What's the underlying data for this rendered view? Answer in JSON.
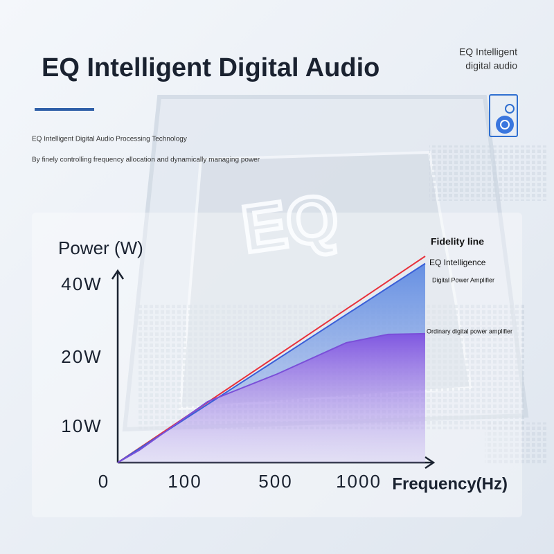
{
  "chart_data": {
    "type": "line",
    "title": "EQ Intelligent Digital Audio",
    "badge": [
      "EQ Intelligent",
      "digital audio"
    ],
    "subtitle": [
      "EQ Intelligent Digital Audio Processing Technology",
      "By finely controlling frequency allocation and dynamically managing power"
    ],
    "watermark": "EQ",
    "y_label": "Power (W)",
    "x_label": "Frequency(Hz)",
    "xlim": [
      0,
      1450
    ],
    "ylim": [
      0,
      44
    ],
    "xticks": [
      0,
      100,
      500,
      1000
    ],
    "yticks": [
      {
        "value": 10,
        "label": "10W"
      },
      {
        "value": 20,
        "label": "20W"
      },
      {
        "value": 40,
        "label": "40W"
      }
    ],
    "series": [
      {
        "name": "Fidelity line",
        "color": "#e8303a",
        "x": [
          0,
          1400
        ],
        "values": [
          0,
          48
        ]
      },
      {
        "name": "EQ Intelligence",
        "name_sub": "Digital Power Amplifier",
        "color": "#3a5fd8",
        "x": [
          0,
          1400
        ],
        "values": [
          0,
          46
        ]
      },
      {
        "name": "Ordinary digital power amplifier",
        "color": "#7a4fd8",
        "x": [
          0,
          32,
          200,
          510,
          925,
          1175,
          1400
        ],
        "values": [
          0,
          3.5,
          13.7,
          17.7,
          24.2,
          26.5,
          26.7
        ]
      }
    ]
  }
}
